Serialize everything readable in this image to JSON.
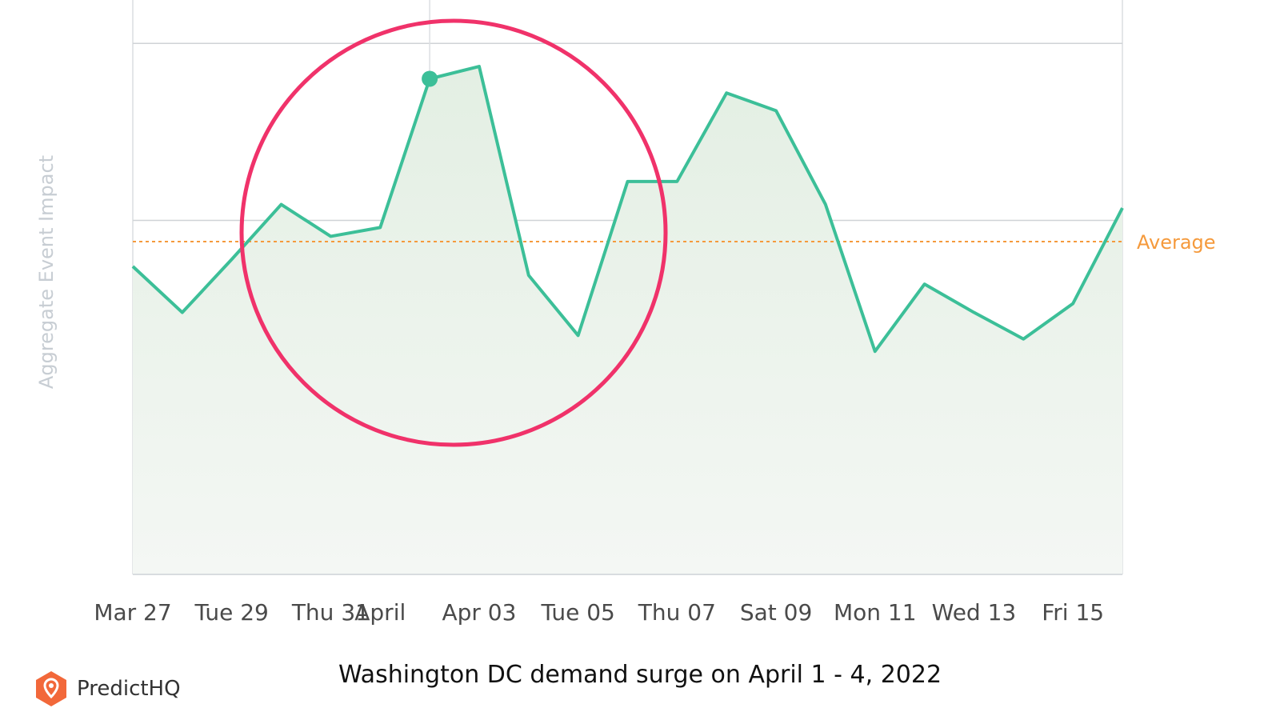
{
  "chart_data": {
    "type": "area",
    "ylabel": "Aggregate Event Impact",
    "x": [
      "Mar 27",
      "Mar 28",
      "Mar 29",
      "Mar 30",
      "Mar 31",
      "Apr 01",
      "Apr 02",
      "Apr 03",
      "Apr 04",
      "Apr 05",
      "Apr 06",
      "Apr 07",
      "Apr 08",
      "Apr 09",
      "Apr 10",
      "Apr 11",
      "Apr 12",
      "Apr 13",
      "Apr 14",
      "Apr 15",
      "Apr 16"
    ],
    "tick_labels": [
      "Mar 27",
      "Tue 29",
      "Thu 31",
      "April",
      "Apr 03",
      "Tue 05",
      "Thu 07",
      "Sat 09",
      "Mon 11",
      "Wed 13",
      "Fri 15"
    ],
    "tick_dates": [
      "Mar 27",
      "Mar 29",
      "Mar 31",
      "Apr 01",
      "Apr 03",
      "Apr 05",
      "Apr 07",
      "Apr 09",
      "Apr 11",
      "Apr 13",
      "Apr 15"
    ],
    "values": [
      1.74,
      1.48,
      1.78,
      2.09,
      1.91,
      1.96,
      2.8,
      2.87,
      1.69,
      1.35,
      2.22,
      2.22,
      2.72,
      2.62,
      2.09,
      1.26,
      1.64,
      1.48,
      1.33,
      1.53,
      2.07
    ],
    "ylim": [
      0,
      3.2
    ],
    "gridlines": [
      1,
      2,
      3
    ],
    "average": {
      "label": "Average",
      "value": 1.88,
      "color": "#f59a3c"
    },
    "highlight": {
      "date": "Apr 02",
      "value": 2.8
    },
    "line_color": "#3cbf98",
    "fill_color": "#e7f2e7",
    "grid": true
  },
  "caption": "Washington DC demand surge on April 1 - 4, 2022",
  "brand": {
    "name": "PredictHQ",
    "icon": "location-pin-icon",
    "color": "#f2683a"
  },
  "annotation": {
    "shape": "circle",
    "color": "#f0326a"
  }
}
